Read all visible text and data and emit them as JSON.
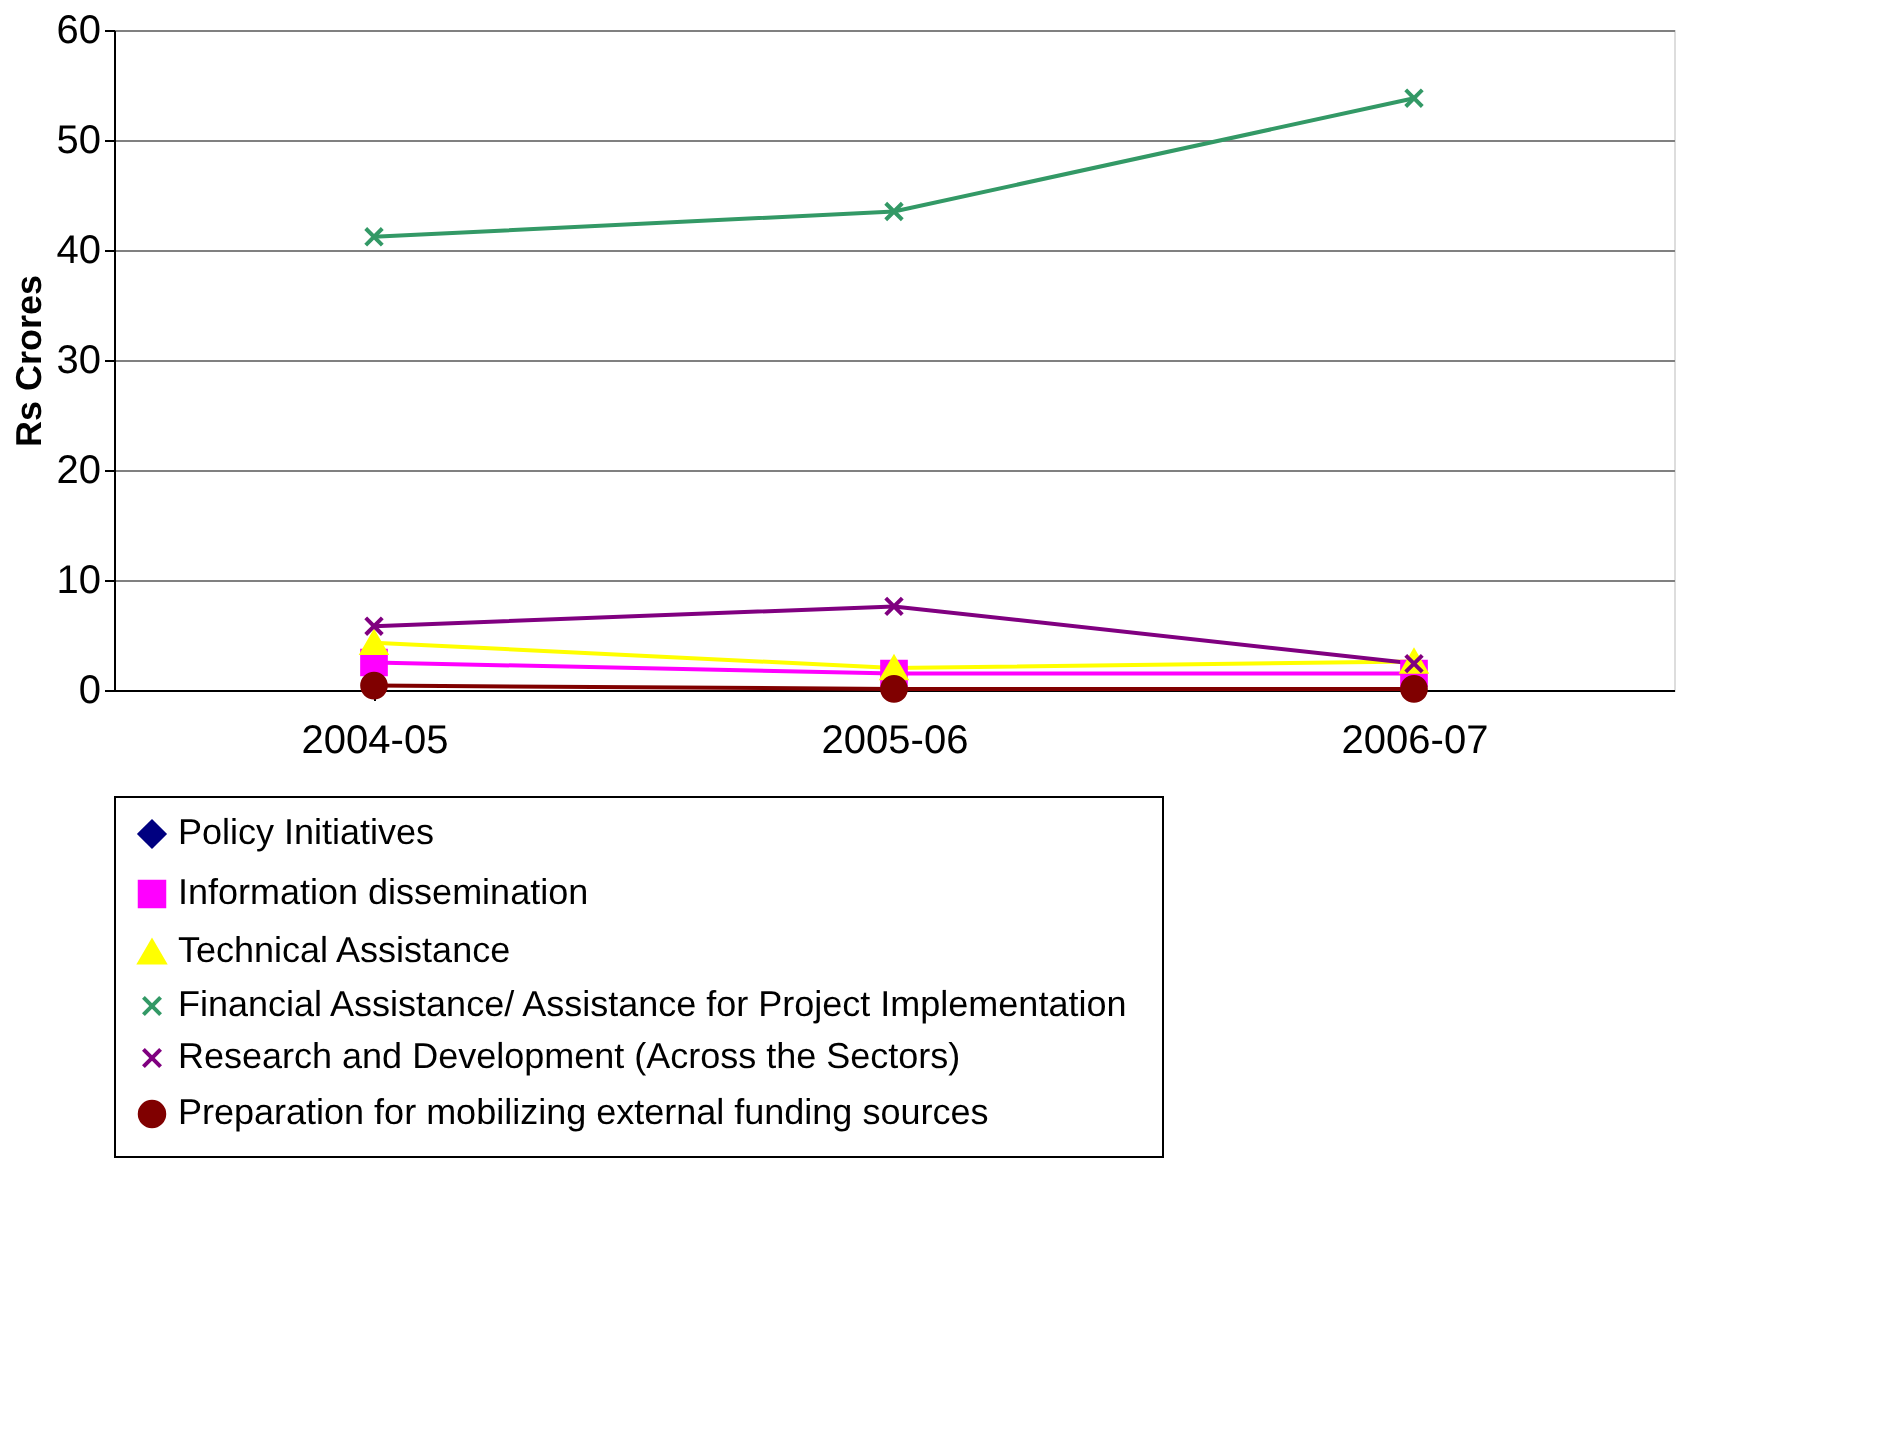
{
  "chart_data": {
    "type": "line",
    "ylabel": "Rs Crores",
    "categories": [
      "2004-05",
      "2005-06",
      "2006-07"
    ],
    "ylim": [
      0,
      60
    ],
    "yticks": [
      0,
      10,
      20,
      30,
      40,
      50,
      60
    ],
    "grid": "y",
    "legend": "bottom",
    "series": [
      {
        "name": "Policy Initiatives",
        "color": "#000080",
        "marker": "diamond",
        "values": [
          null,
          null,
          null
        ]
      },
      {
        "name": "Information dissemination",
        "color": "#ff00ff",
        "marker": "square",
        "values": [
          2.5,
          1.5,
          1.5
        ]
      },
      {
        "name": "Technical Assistance",
        "color": "#ffff00",
        "marker": "triangle",
        "values": [
          4.3,
          2.0,
          2.6
        ]
      },
      {
        "name": "Financial Assistance/ Assistance  for Project Implementation",
        "color": "#339966",
        "marker": "cross",
        "values": [
          41.2,
          43.5,
          53.8
        ]
      },
      {
        "name": "Research and Development (Across the Sectors)",
        "color": "#800080",
        "marker": "cross",
        "values": [
          5.8,
          7.6,
          2.4
        ]
      },
      {
        "name": "Preparation for mobilizing external funding sources",
        "color": "#800000",
        "marker": "circle",
        "values": [
          0.4,
          0.1,
          0.1
        ]
      }
    ]
  }
}
